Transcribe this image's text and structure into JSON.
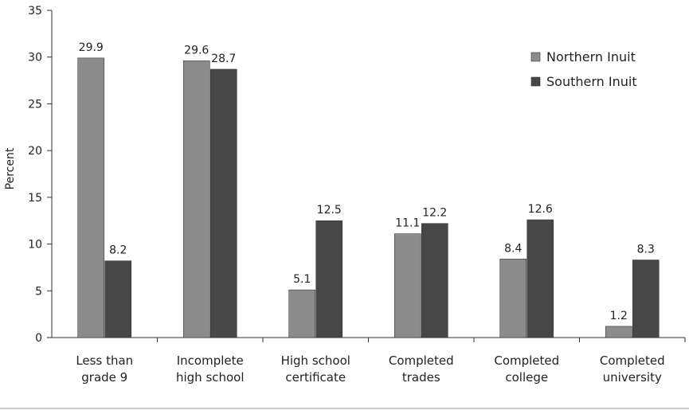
{
  "chart_data": {
    "type": "bar",
    "categories": [
      [
        "Less than",
        "grade 9"
      ],
      [
        "Incomplete",
        "high school"
      ],
      [
        "High school",
        "certificate"
      ],
      [
        "Completed",
        "trades"
      ],
      [
        "Completed",
        "college"
      ],
      [
        "Completed",
        "university"
      ]
    ],
    "series": [
      {
        "name": "Northern Inuit",
        "color": "#8c8c8c",
        "values": [
          29.9,
          29.6,
          5.1,
          11.1,
          8.4,
          1.2
        ]
      },
      {
        "name": "Southern Inuit",
        "color": "#474747",
        "values": [
          8.2,
          28.7,
          12.5,
          12.2,
          12.6,
          8.3
        ]
      }
    ],
    "ylabel": "Percent",
    "ylim": [
      0,
      35
    ],
    "yticks": [
      0,
      5,
      10,
      15,
      20,
      25,
      30,
      35
    ],
    "grid": false,
    "legend_position": "top-right"
  }
}
